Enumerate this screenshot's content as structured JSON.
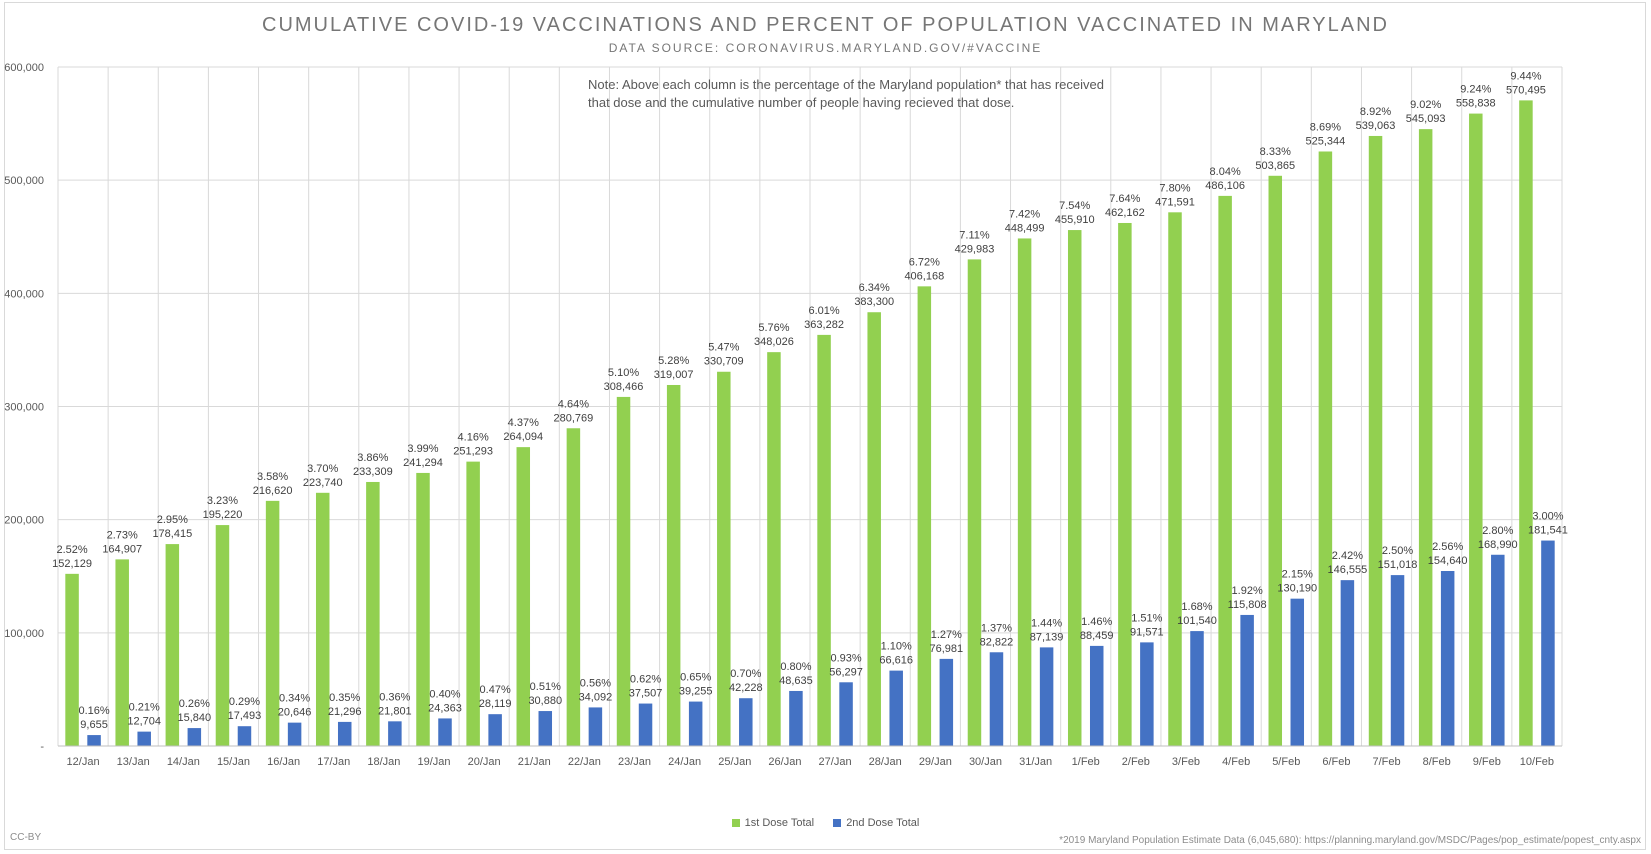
{
  "chart_data": {
    "type": "bar",
    "title": "CUMULATIVE COVID-19 VACCINATIONS AND PERCENT OF POPULATION VACCINATED IN MARYLAND",
    "subtitle": "DATA SOURCE: CORONAVIRUS.MARYLAND.GOV/#VACCINE",
    "note": "Note: Above each column is the percentage of the Maryland population* that has received that dose and the cumulative number of people having recieved that dose.",
    "categories": [
      "12/Jan",
      "13/Jan",
      "14/Jan",
      "15/Jan",
      "16/Jan",
      "17/Jan",
      "18/Jan",
      "19/Jan",
      "20/Jan",
      "21/Jan",
      "22/Jan",
      "23/Jan",
      "24/Jan",
      "25/Jan",
      "26/Jan",
      "27/Jan",
      "28/Jan",
      "29/Jan",
      "30/Jan",
      "31/Jan",
      "1/Feb",
      "2/Feb",
      "3/Feb",
      "4/Feb",
      "5/Feb",
      "6/Feb",
      "7/Feb",
      "8/Feb",
      "9/Feb",
      "10/Feb"
    ],
    "series": [
      {
        "name": "1st Dose Total",
        "color": "#92d050",
        "values": [
          152129,
          164907,
          178415,
          195220,
          216620,
          223740,
          233309,
          241294,
          251293,
          264094,
          280769,
          308466,
          319007,
          330709,
          348026,
          363282,
          383300,
          406168,
          429983,
          448499,
          455910,
          462162,
          471591,
          486106,
          503865,
          525344,
          539063,
          545093,
          558838,
          570495
        ],
        "labels": [
          "152,129",
          "164,907",
          "178,415",
          "195,220",
          "216,620",
          "223,740",
          "233,309",
          "241,294",
          "251,293",
          "264,094",
          "280,769",
          "308,466",
          "319,007",
          "330,709",
          "348,026",
          "363,282",
          "383,300",
          "406,168",
          "429,983",
          "448,499",
          "455,910",
          "462,162",
          "471,591",
          "486,106",
          "503,865",
          "525,344",
          "539,063",
          "545,093",
          "558,838",
          "570,495"
        ],
        "percents": [
          "2.52%",
          "2.73%",
          "2.95%",
          "3.23%",
          "3.58%",
          "3.70%",
          "3.86%",
          "3.99%",
          "4.16%",
          "4.37%",
          "4.64%",
          "5.10%",
          "5.28%",
          "5.47%",
          "5.76%",
          "6.01%",
          "6.34%",
          "6.72%",
          "7.11%",
          "7.42%",
          "7.54%",
          "7.64%",
          "7.80%",
          "8.04%",
          "8.33%",
          "8.69%",
          "8.92%",
          "9.02%",
          "9.24%",
          "9.44%"
        ]
      },
      {
        "name": "2nd Dose Total",
        "color": "#4472c4",
        "values": [
          9655,
          12704,
          15840,
          17493,
          20646,
          21296,
          21801,
          24363,
          28119,
          30880,
          34092,
          37507,
          39255,
          42228,
          48635,
          56297,
          66616,
          76981,
          82822,
          87139,
          88459,
          91571,
          101540,
          115808,
          130190,
          146555,
          151018,
          154640,
          168990,
          181541
        ],
        "labels": [
          "9,655",
          "12,704",
          "15,840",
          "17,493",
          "20,646",
          "21,296",
          "21,801",
          "24,363",
          "28,119",
          "30,880",
          "34,092",
          "37,507",
          "39,255",
          "42,228",
          "48,635",
          "56,297",
          "66,616",
          "76,981",
          "82,822",
          "87,139",
          "88,459",
          "91,571",
          "101,540",
          "115,808",
          "130,190",
          "146,555",
          "151,018",
          "154,640",
          "168,990",
          "181,541"
        ],
        "percents": [
          "0.16%",
          "0.21%",
          "0.26%",
          "0.29%",
          "0.34%",
          "0.35%",
          "0.36%",
          "0.40%",
          "0.47%",
          "0.51%",
          "0.56%",
          "0.62%",
          "0.65%",
          "0.70%",
          "0.80%",
          "0.93%",
          "1.10%",
          "1.27%",
          "1.37%",
          "1.44%",
          "1.46%",
          "1.51%",
          "1.68%",
          "1.92%",
          "2.15%",
          "2.42%",
          "2.50%",
          "2.56%",
          "2.80%",
          "3.00%"
        ]
      }
    ],
    "ylim": [
      0,
      600000
    ],
    "yticks": [
      0,
      100000,
      200000,
      300000,
      400000,
      500000,
      600000
    ],
    "yticklabels": [
      "-",
      "100,000",
      "200,000",
      "300,000",
      "400,000",
      "500,000",
      "600,000"
    ],
    "grid": true,
    "legend_position": "bottom"
  },
  "footer": {
    "license": "CC-BY",
    "footnote": "*2019 Maryland Population Estimate Data (6,045,680): https://planning.maryland.gov/MSDC/Pages/pop_estimate/popest_cnty.aspx"
  }
}
